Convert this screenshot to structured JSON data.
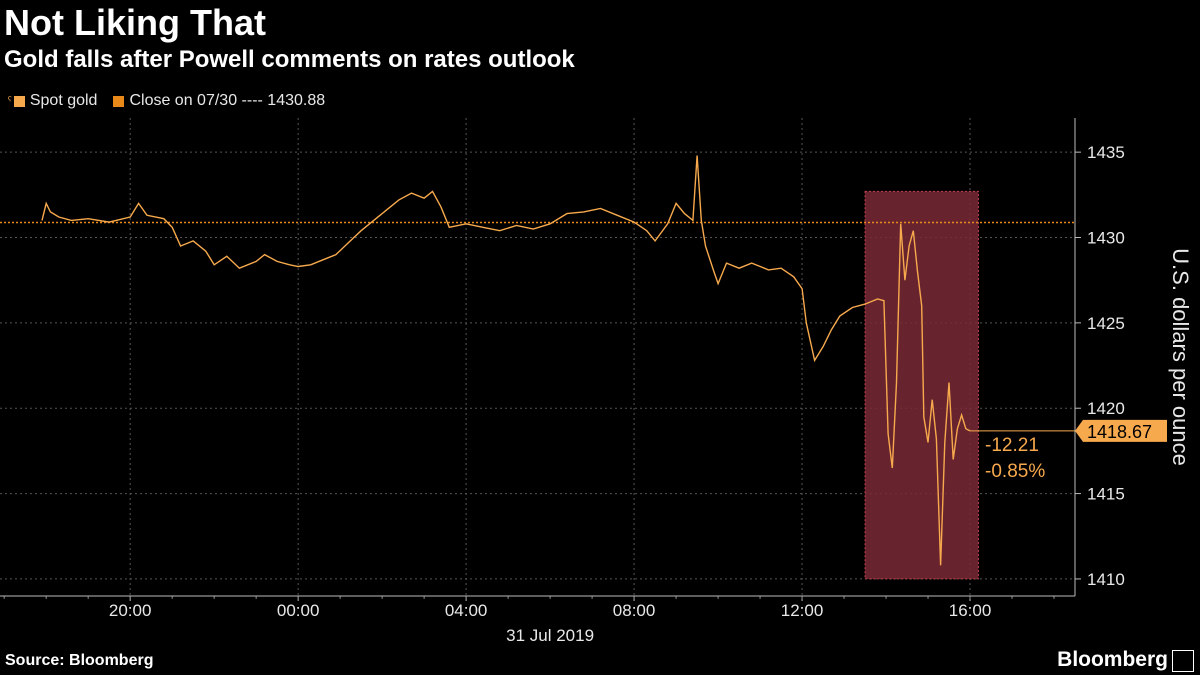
{
  "header": {
    "title": "Not Liking That",
    "subtitle": "Gold falls after Powell comments on rates outlook"
  },
  "legend": {
    "series_label": "Spot gold",
    "close_label": "Close on 07/30 ---- 1430.88"
  },
  "footer": {
    "source": "Source: Bloomberg",
    "brand": "Bloomberg"
  },
  "colors": {
    "line": "#f7a94d",
    "close_line": "#e8891a",
    "highlight": "#7a2a36",
    "grid": "#555555"
  },
  "chart_data": {
    "type": "line",
    "title": "Not Liking That",
    "subtitle": "Gold falls after Powell comments on rates outlook",
    "ylabel": "U.S. dollars per ounce",
    "xlabel": "",
    "x_date_label": "31 Jul 2019",
    "ylim": [
      1409,
      1437
    ],
    "xlim": [
      17.5,
      19.1
    ],
    "y_ticks": [
      1410,
      1415,
      1420,
      1425,
      1430,
      1435
    ],
    "x_ticks": [
      {
        "label": "20:00",
        "hour": 20
      },
      {
        "label": "00:00",
        "hour": 24
      },
      {
        "label": "04:00",
        "hour": 28
      },
      {
        "label": "08:00",
        "hour": 32
      },
      {
        "label": "12:00",
        "hour": 36
      },
      {
        "label": "16:00",
        "hour": 40
      }
    ],
    "x_range_hours": [
      16.9,
      42.5
    ],
    "reference_line": {
      "label": "Close on 07/30",
      "value": 1430.88
    },
    "last_value": {
      "label": "1418.67",
      "value": 1418.67
    },
    "change_annotation": [
      "-12.21",
      "-0.85%"
    ],
    "highlight_region": {
      "x_start_hour": 37.5,
      "x_end_hour": 40.2,
      "y_low": 1410,
      "y_high": 1432.7
    },
    "series": [
      {
        "name": "Spot gold",
        "points": [
          [
            17.9,
            1431.0
          ],
          [
            18.0,
            1432.0
          ],
          [
            18.1,
            1431.5
          ],
          [
            18.3,
            1431.2
          ],
          [
            18.6,
            1431.0
          ],
          [
            19.0,
            1431.1
          ],
          [
            19.5,
            1430.9
          ],
          [
            20.0,
            1431.2
          ],
          [
            20.2,
            1432.0
          ],
          [
            20.4,
            1431.3
          ],
          [
            20.8,
            1431.1
          ],
          [
            21.0,
            1430.6
          ],
          [
            21.2,
            1429.5
          ],
          [
            21.5,
            1429.8
          ],
          [
            21.8,
            1429.2
          ],
          [
            22.0,
            1428.4
          ],
          [
            22.3,
            1428.9
          ],
          [
            22.6,
            1428.2
          ],
          [
            23.0,
            1428.6
          ],
          [
            23.2,
            1429.0
          ],
          [
            23.5,
            1428.6
          ],
          [
            23.8,
            1428.4
          ],
          [
            24.0,
            1428.3
          ],
          [
            24.3,
            1428.4
          ],
          [
            24.6,
            1428.7
          ],
          [
            24.9,
            1429.0
          ],
          [
            25.2,
            1429.7
          ],
          [
            25.5,
            1430.4
          ],
          [
            25.8,
            1431.0
          ],
          [
            26.1,
            1431.6
          ],
          [
            26.4,
            1432.2
          ],
          [
            26.7,
            1432.6
          ],
          [
            27.0,
            1432.3
          ],
          [
            27.2,
            1432.7
          ],
          [
            27.4,
            1431.8
          ],
          [
            27.6,
            1430.6
          ],
          [
            28.0,
            1430.8
          ],
          [
            28.4,
            1430.6
          ],
          [
            28.8,
            1430.4
          ],
          [
            29.2,
            1430.7
          ],
          [
            29.6,
            1430.5
          ],
          [
            30.0,
            1430.8
          ],
          [
            30.4,
            1431.4
          ],
          [
            30.8,
            1431.5
          ],
          [
            31.2,
            1431.7
          ],
          [
            31.6,
            1431.3
          ],
          [
            32.0,
            1430.9
          ],
          [
            32.3,
            1430.4
          ],
          [
            32.5,
            1429.8
          ],
          [
            32.8,
            1430.8
          ],
          [
            33.0,
            1432.0
          ],
          [
            33.2,
            1431.4
          ],
          [
            33.4,
            1431.0
          ],
          [
            33.5,
            1434.8
          ],
          [
            33.6,
            1431.0
          ],
          [
            33.7,
            1429.5
          ],
          [
            33.9,
            1428.0
          ],
          [
            34.0,
            1427.3
          ],
          [
            34.2,
            1428.5
          ],
          [
            34.5,
            1428.2
          ],
          [
            34.8,
            1428.5
          ],
          [
            35.2,
            1428.1
          ],
          [
            35.5,
            1428.2
          ],
          [
            35.8,
            1427.7
          ],
          [
            36.0,
            1427.0
          ],
          [
            36.1,
            1425.0
          ],
          [
            36.3,
            1422.8
          ],
          [
            36.5,
            1423.6
          ],
          [
            36.7,
            1424.6
          ],
          [
            36.9,
            1425.4
          ],
          [
            37.2,
            1425.9
          ],
          [
            37.5,
            1426.1
          ],
          [
            37.8,
            1426.4
          ],
          [
            37.95,
            1426.3
          ],
          [
            38.05,
            1418.5
          ],
          [
            38.15,
            1416.5
          ],
          [
            38.25,
            1421.5
          ],
          [
            38.35,
            1430.8
          ],
          [
            38.45,
            1427.5
          ],
          [
            38.55,
            1429.5
          ],
          [
            38.65,
            1430.4
          ],
          [
            38.75,
            1428.0
          ],
          [
            38.85,
            1426.0
          ],
          [
            38.9,
            1419.5
          ],
          [
            39.0,
            1418.0
          ],
          [
            39.1,
            1420.5
          ],
          [
            39.2,
            1418.2
          ],
          [
            39.3,
            1410.8
          ],
          [
            39.4,
            1418.0
          ],
          [
            39.5,
            1421.5
          ],
          [
            39.6,
            1417.0
          ],
          [
            39.7,
            1418.8
          ],
          [
            39.8,
            1419.6
          ],
          [
            39.9,
            1418.8
          ],
          [
            40.0,
            1418.67
          ]
        ]
      }
    ]
  }
}
